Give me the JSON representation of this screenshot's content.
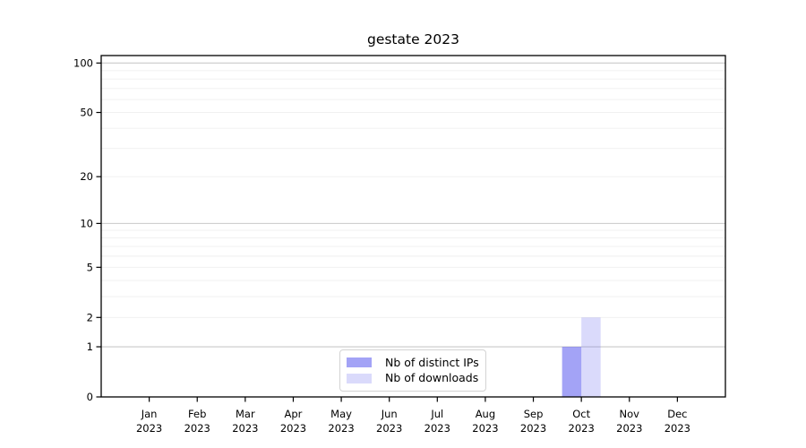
{
  "chart_data": {
    "type": "bar",
    "title": "gestate 2023",
    "categories": [
      "Jan 2023",
      "Feb 2023",
      "Mar 2023",
      "Apr 2023",
      "May 2023",
      "Jun 2023",
      "Jul 2023",
      "Aug 2023",
      "Sep 2023",
      "Oct 2023",
      "Nov 2023",
      "Dec 2023"
    ],
    "series": [
      {
        "name": "Nb of distinct IPs",
        "color": "rgba(106,106,240,0.62)",
        "values": [
          0,
          0,
          0,
          0,
          0,
          0,
          0,
          0,
          0,
          1,
          0,
          0
        ]
      },
      {
        "name": "Nb of downloads",
        "color": "rgba(106,106,240,0.25)",
        "values": [
          0,
          0,
          0,
          0,
          0,
          0,
          0,
          0,
          0,
          2,
          0,
          0
        ]
      }
    ],
    "xlabel": "",
    "ylabel": "",
    "yscale": "log1p",
    "ylim": [
      0,
      111
    ],
    "ytick_values": [
      0,
      1,
      2,
      5,
      10,
      20,
      50,
      100
    ],
    "grid": {
      "major_values": [
        1,
        10,
        100
      ],
      "minor_values": [
        2,
        3,
        4,
        5,
        6,
        7,
        8,
        9,
        20,
        30,
        40,
        50,
        60,
        70,
        80,
        90
      ],
      "major_color": "#c9c9c9",
      "minor_color": "#efefef"
    },
    "legend": {
      "position": "lower center"
    },
    "axis_color": "#000000",
    "tick_label_color": "#000000",
    "background": "#ffffff"
  }
}
